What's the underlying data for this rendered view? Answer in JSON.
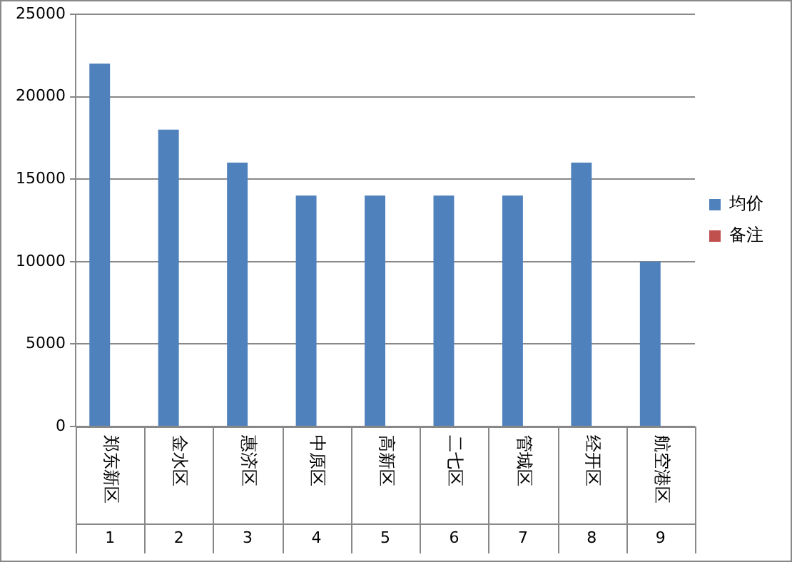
{
  "chart_data": {
    "type": "bar",
    "categories": [
      "郑东新区",
      "金水区",
      "惠济区",
      "中原区",
      "高新区",
      "二七区",
      "管城区",
      "经开区",
      "航空港区"
    ],
    "series": [
      {
        "name": "均价",
        "color": "#4f81bd",
        "values": [
          22000,
          18000,
          16000,
          14000,
          14000,
          14000,
          14000,
          16000,
          10000
        ]
      },
      {
        "name": "备注",
        "color": "#c0504d",
        "values": [
          null,
          null,
          null,
          null,
          null,
          null,
          null,
          null,
          null
        ]
      }
    ],
    "annotations": [
      "1",
      "2",
      "3",
      "4",
      "5",
      "6",
      "7",
      "8",
      "9"
    ],
    "ylim": [
      0,
      25000
    ],
    "yticks": [
      0,
      5000,
      10000,
      15000,
      20000,
      25000
    ],
    "grid": "y",
    "legend": "right"
  }
}
